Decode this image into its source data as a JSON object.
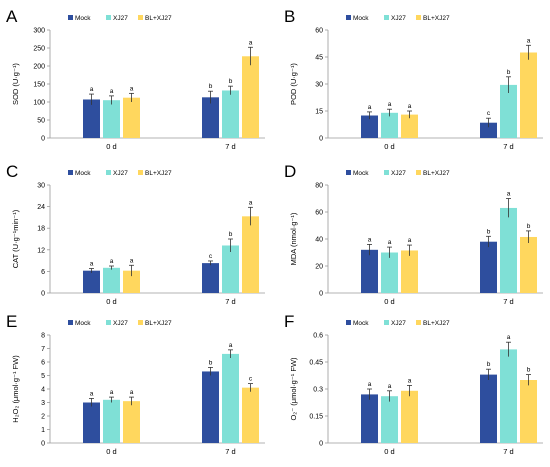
{
  "colors": {
    "Mock": "#2e4e9e",
    "XJ27": "#7fe0d6",
    "BL+XJ27": "#ffd75e"
  },
  "chart_data": [
    {
      "panel": "A",
      "type": "bar",
      "ylabel": "SOD (U·g⁻¹)",
      "ylim": [
        0,
        300
      ],
      "yticks": [
        "0",
        "50",
        "100",
        "150",
        "200",
        "250",
        "300"
      ],
      "categories": [
        "0 d",
        "7 d"
      ],
      "series": [
        {
          "name": "Mock",
          "values": [
            107,
            113
          ],
          "errors": [
            15,
            17
          ],
          "labels": [
            "a",
            "b"
          ]
        },
        {
          "name": "XJ27",
          "values": [
            105,
            132
          ],
          "errors": [
            12,
            12
          ],
          "labels": [
            "a",
            "b"
          ]
        },
        {
          "name": "BL+XJ27",
          "values": [
            112,
            227
          ],
          "errors": [
            12,
            25
          ],
          "labels": [
            "a",
            "a"
          ]
        }
      ]
    },
    {
      "panel": "B",
      "type": "bar",
      "ylabel": "POD (U·g⁻¹)",
      "ylim": [
        0,
        60
      ],
      "yticks": [
        "0",
        "15",
        "30",
        "45",
        "60"
      ],
      "categories": [
        "0 d",
        "7 d"
      ],
      "series": [
        {
          "name": "Mock",
          "values": [
            12.5,
            8.5
          ],
          "errors": [
            2,
            2.5
          ],
          "labels": [
            "a",
            "c"
          ]
        },
        {
          "name": "XJ27",
          "values": [
            14,
            29.5
          ],
          "errors": [
            2,
            4.5
          ],
          "labels": [
            "a",
            "b"
          ]
        },
        {
          "name": "BL+XJ27",
          "values": [
            13,
            47.5
          ],
          "errors": [
            2,
            4
          ],
          "labels": [
            "a",
            "a"
          ]
        }
      ]
    },
    {
      "panel": "C",
      "type": "bar",
      "ylabel": "CAT (U·g⁻¹min⁻¹)",
      "ylim": [
        0,
        30
      ],
      "yticks": [
        "0",
        "6",
        "12",
        "18",
        "24",
        "30"
      ],
      "categories": [
        "0 d",
        "7 d"
      ],
      "series": [
        {
          "name": "Mock",
          "values": [
            6.2,
            8.3
          ],
          "errors": [
            0.6,
            0.6
          ],
          "labels": [
            "a",
            "c"
          ]
        },
        {
          "name": "XJ27",
          "values": [
            7.0,
            13.2
          ],
          "errors": [
            0.5,
            1.8
          ],
          "labels": [
            "a",
            "b"
          ]
        },
        {
          "name": "BL+XJ27",
          "values": [
            6.2,
            21.3
          ],
          "errors": [
            1.5,
            2.5
          ],
          "labels": [
            "a",
            "a"
          ]
        }
      ]
    },
    {
      "panel": "D",
      "type": "bar",
      "ylabel": "MDA (nmol·g⁻¹)",
      "ylim": [
        0,
        80
      ],
      "yticks": [
        "0",
        "20",
        "40",
        "60",
        "80"
      ],
      "categories": [
        "0 d",
        "7 d"
      ],
      "series": [
        {
          "name": "Mock",
          "values": [
            32,
            38
          ],
          "errors": [
            4,
            4
          ],
          "labels": [
            "a",
            "b"
          ]
        },
        {
          "name": "XJ27",
          "values": [
            30,
            63
          ],
          "errors": [
            4,
            7
          ],
          "labels": [
            "a",
            "a"
          ]
        },
        {
          "name": "BL+XJ27",
          "values": [
            31.5,
            41.5
          ],
          "errors": [
            4,
            4.5
          ],
          "labels": [
            "a",
            "b"
          ]
        }
      ]
    },
    {
      "panel": "E",
      "type": "bar",
      "ylabel": "H₂O₂ (μmol·g⁻¹ FW)",
      "ylim": [
        0,
        8
      ],
      "yticks": [
        "0",
        "1",
        "2",
        "3",
        "4",
        "5",
        "6",
        "7",
        "8"
      ],
      "categories": [
        "0 d",
        "7 d"
      ],
      "series": [
        {
          "name": "Mock",
          "values": [
            3.0,
            5.3
          ],
          "errors": [
            0.3,
            0.3
          ],
          "labels": [
            "a",
            "b"
          ]
        },
        {
          "name": "XJ27",
          "values": [
            3.2,
            6.6
          ],
          "errors": [
            0.2,
            0.3
          ],
          "labels": [
            "a",
            "a"
          ]
        },
        {
          "name": "BL+XJ27",
          "values": [
            3.1,
            4.1
          ],
          "errors": [
            0.3,
            0.3
          ],
          "labels": [
            "a",
            "c"
          ]
        }
      ]
    },
    {
      "panel": "F",
      "type": "bar",
      "ylabel": "O₂⁻ (μmol·g⁻¹ FW)",
      "ylim": [
        0,
        0.6
      ],
      "yticks": [
        "0",
        "0.15",
        "0.3",
        "0.45",
        "0.6"
      ],
      "categories": [
        "0 d",
        "7 d"
      ],
      "series": [
        {
          "name": "Mock",
          "values": [
            0.27,
            0.38
          ],
          "errors": [
            0.03,
            0.03
          ],
          "labels": [
            "a",
            "b"
          ]
        },
        {
          "name": "XJ27",
          "values": [
            0.26,
            0.52
          ],
          "errors": [
            0.03,
            0.04
          ],
          "labels": [
            "a",
            "a"
          ]
        },
        {
          "name": "BL+XJ27",
          "values": [
            0.29,
            0.35
          ],
          "errors": [
            0.03,
            0.03
          ],
          "labels": [
            "a",
            "b"
          ]
        }
      ]
    }
  ]
}
